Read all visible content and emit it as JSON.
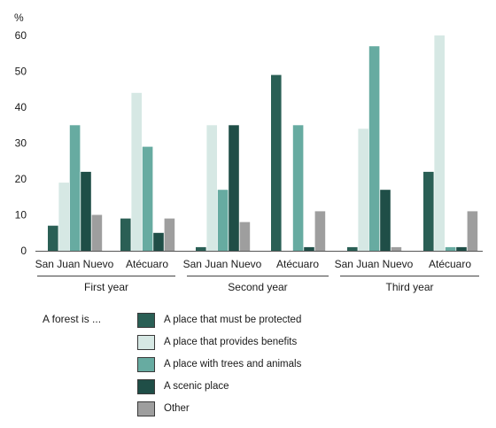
{
  "chart_data": {
    "type": "bar",
    "unit_label": "%",
    "ylim": [
      0,
      60
    ],
    "yticks": [
      0,
      10,
      20,
      30,
      40,
      50,
      60
    ],
    "grid": false,
    "groups": [
      {
        "label": "First year",
        "categories": [
          "San Juan Nuevo",
          "Atécuaro"
        ]
      },
      {
        "label": "Second year",
        "categories": [
          "San Juan Nuevo",
          "Atécuaro"
        ]
      },
      {
        "label": "Third year",
        "categories": [
          "San Juan Nuevo",
          "Atécuaro"
        ]
      }
    ],
    "categories": [
      "First year – San Juan Nuevo",
      "First year – Atécuaro",
      "Second year – San Juan Nuevo",
      "Second year – Atécuaro",
      "Third year – San Juan Nuevo",
      "Third year – Atécuaro"
    ],
    "series": [
      {
        "name": "A place that must be protected",
        "color": "#2a5f55",
        "values": [
          7,
          9,
          1,
          49,
          1,
          22
        ]
      },
      {
        "name": "A place that provides benefits",
        "color": "#d6e8e4",
        "values": [
          19,
          44,
          35,
          0,
          34,
          60
        ]
      },
      {
        "name": "A place with trees and animals",
        "color": "#67aba1",
        "values": [
          35,
          29,
          17,
          35,
          57,
          1
        ]
      },
      {
        "name": "A scenic place",
        "color": "#1f4e47",
        "values": [
          22,
          5,
          35,
          1,
          17,
          1
        ]
      },
      {
        "name": "Other",
        "color": "#9e9e9e",
        "values": [
          10,
          9,
          8,
          11,
          1,
          11
        ]
      }
    ],
    "legend": {
      "title": "A forest is ...",
      "position": "bottom"
    }
  }
}
